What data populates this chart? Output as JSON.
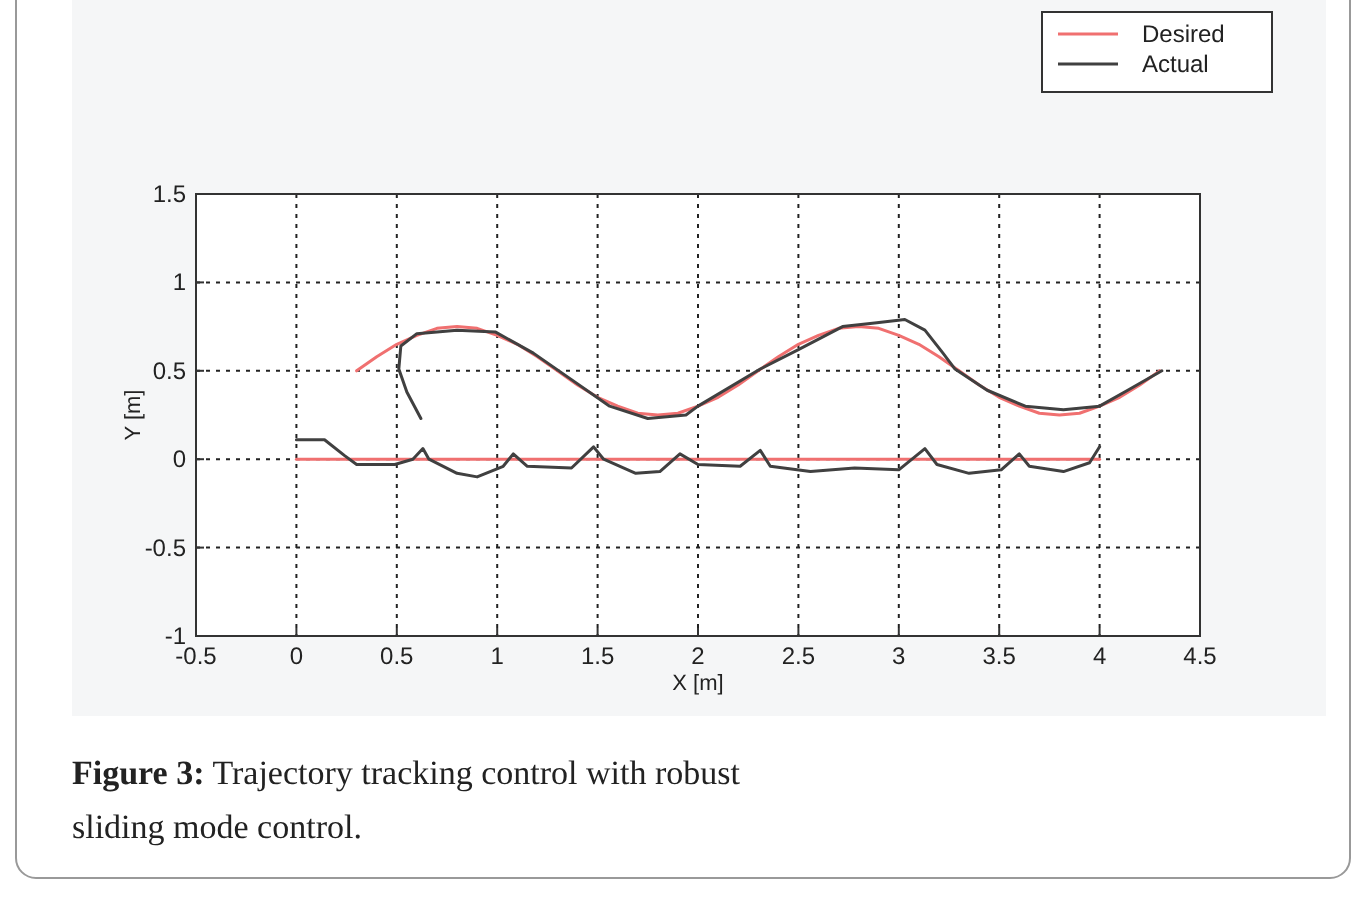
{
  "chart_data": {
    "type": "line",
    "xlabel": "X [m]",
    "ylabel": "Y [m]",
    "xlim": [
      -0.5,
      4.5
    ],
    "ylim": [
      -1,
      1.5
    ],
    "xticks": [
      -0.5,
      0,
      0.5,
      1,
      1.5,
      2,
      2.5,
      3,
      3.5,
      4,
      4.5
    ],
    "yticks": [
      -1,
      -0.5,
      0,
      0.5,
      1,
      1.5
    ],
    "grid": true,
    "legend": "top right",
    "line_style": "solid",
    "marker": "none",
    "series": [
      {
        "name": "Desired",
        "color": "#f07070",
        "x": [
          0.3,
          0.4,
          0.5,
          0.6,
          0.7,
          0.8,
          0.9,
          1.0,
          1.1,
          1.2,
          1.3,
          1.4,
          1.5,
          1.6,
          1.7,
          1.8,
          1.9,
          2.0,
          2.1,
          2.2,
          2.3,
          2.4,
          2.5,
          2.6,
          2.7,
          2.8,
          2.9,
          3.0,
          3.1,
          3.2,
          3.3,
          3.4,
          3.5,
          3.6,
          3.7,
          3.8,
          3.9,
          4.0,
          4.1,
          4.2,
          4.3
        ],
        "values": [
          0.5,
          0.58,
          0.65,
          0.7,
          0.74,
          0.75,
          0.74,
          0.7,
          0.65,
          0.58,
          0.5,
          0.42,
          0.35,
          0.3,
          0.26,
          0.25,
          0.26,
          0.3,
          0.35,
          0.42,
          0.5,
          0.58,
          0.65,
          0.7,
          0.74,
          0.75,
          0.74,
          0.7,
          0.65,
          0.58,
          0.5,
          0.42,
          0.35,
          0.3,
          0.26,
          0.25,
          0.26,
          0.3,
          0.35,
          0.42,
          0.5
        ]
      },
      {
        "name": "Actual",
        "color": "#404040",
        "x": [
          0.62,
          0.55,
          0.51,
          0.52,
          0.6,
          0.8,
          0.99,
          1.18,
          1.37,
          1.56,
          1.75,
          1.94,
          2.0,
          2.31,
          2.5,
          2.72,
          2.88,
          3.03,
          3.13,
          3.22,
          3.28,
          3.44,
          3.63,
          3.82,
          4.0,
          4.14,
          4.31
        ],
        "values": [
          0.23,
          0.38,
          0.51,
          0.64,
          0.71,
          0.73,
          0.72,
          0.6,
          0.45,
          0.3,
          0.23,
          0.25,
          0.3,
          0.51,
          0.62,
          0.75,
          0.77,
          0.79,
          0.73,
          0.6,
          0.51,
          0.39,
          0.3,
          0.28,
          0.3,
          0.39,
          0.5
        ]
      },
      {
        "color": "#f07070",
        "x": [
          0,
          4
        ],
        "values": [
          0,
          0
        ]
      },
      {
        "color": "#404040",
        "x": [
          0,
          0.14,
          0.24,
          0.3,
          0.49,
          0.58,
          0.63,
          0.66,
          0.8,
          0.9,
          1.03,
          1.08,
          1.15,
          1.37,
          1.48,
          1.53,
          1.69,
          1.81,
          1.91,
          2.0,
          2.21,
          2.31,
          2.36,
          2.56,
          2.78,
          3.0,
          3.13,
          3.19,
          3.35,
          3.51,
          3.6,
          3.65,
          3.82,
          3.95,
          4.0
        ],
        "values": [
          0.11,
          0.11,
          0.02,
          -0.03,
          -0.03,
          0,
          0.06,
          0,
          -0.08,
          -0.1,
          -0.04,
          0.03,
          -0.04,
          -0.05,
          0.07,
          0,
          -0.08,
          -0.07,
          0.03,
          -0.03,
          -0.04,
          0.05,
          -0.04,
          -0.07,
          -0.05,
          -0.06,
          0.06,
          -0.03,
          -0.08,
          -0.06,
          0.03,
          -0.04,
          -0.07,
          -0.02,
          0.07
        ]
      }
    ],
    "annotations": [
      "Figure 3: Trajectory tracking control with robust sliding mode control."
    ]
  }
}
